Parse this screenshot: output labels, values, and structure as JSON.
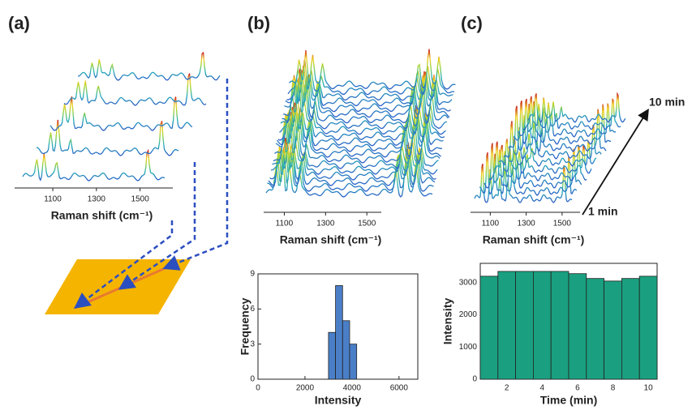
{
  "chart_data": [
    {
      "type": "spectra",
      "panel": "(a)",
      "xlabel": "Raman shift (cm⁻¹)",
      "xlim": [
        925,
        1650
      ],
      "xticks": [
        1100,
        1300,
        1500
      ]
    },
    {
      "type": "spectra",
      "panel": "(b)",
      "xlabel": "Raman shift (cm⁻¹)",
      "xlim": [
        1000,
        1570
      ],
      "xticks": [
        1100,
        1300,
        1500
      ]
    },
    {
      "type": "spectra",
      "panel": "(c)",
      "xlabel": "Raman shift (cm⁻¹)",
      "xlim": [
        990,
        1600
      ],
      "xticks": [
        1100,
        1300,
        1500
      ],
      "annotations": [
        "10 min",
        "1 min"
      ]
    },
    {
      "type": "histogram",
      "xlabel": "Intensity",
      "ylabel": "Frequency",
      "bins": [
        3000,
        3300,
        3600,
        3900,
        4200
      ],
      "values": [
        4,
        8,
        5,
        3
      ],
      "color": "#4a7fc8",
      "xlim": [
        0,
        6800
      ],
      "xticks": [
        0,
        2000,
        4000,
        6000
      ],
      "ylim": [
        0,
        9
      ],
      "yticks": [
        0,
        3,
        6,
        9
      ]
    },
    {
      "type": "bar",
      "xlabel": "Time (min)",
      "ylabel": "Intensity",
      "x": [
        1,
        2,
        3,
        4,
        5,
        6,
        7,
        8,
        9,
        10
      ],
      "values": [
        3200,
        3350,
        3350,
        3350,
        3350,
        3280,
        3130,
        3050,
        3130,
        3200
      ],
      "color": "#1aa080",
      "xlim": [
        0.5,
        10.5
      ],
      "xticks": [
        2,
        4,
        6,
        8,
        10
      ],
      "ylim": [
        0,
        3600
      ],
      "yticks": [
        0,
        1000,
        2000,
        3000
      ]
    }
  ]
}
